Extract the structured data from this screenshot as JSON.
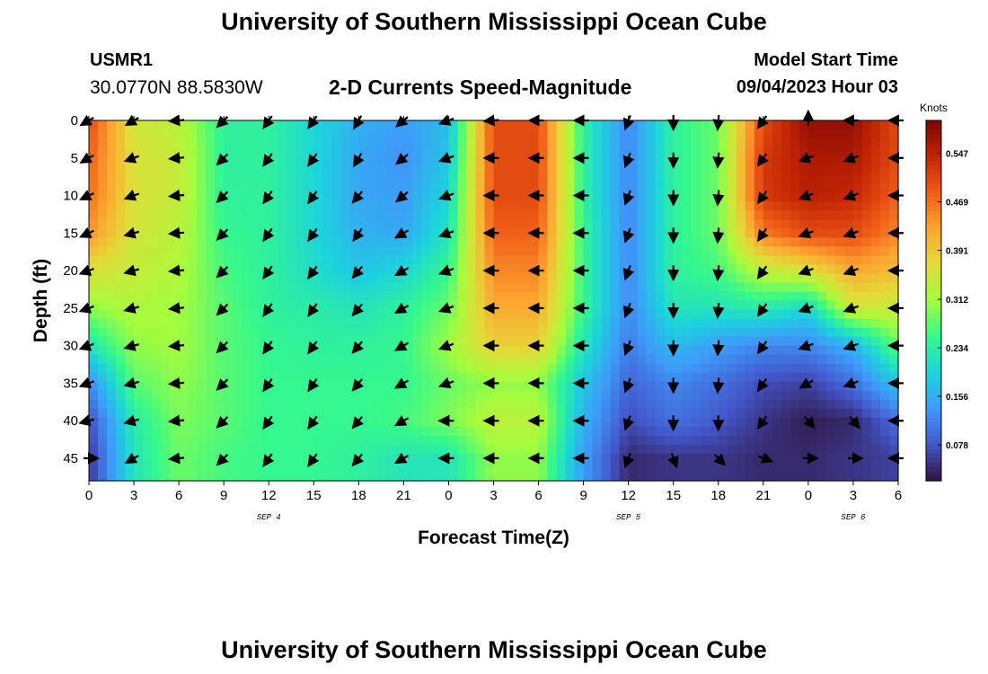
{
  "header": {
    "title": "University of Southern Mississippi Ocean Cube",
    "station": "USMR1",
    "coordinates": "30.0770N  88.5830W",
    "subtitle": "2-D Currents Speed-Magnitude",
    "model_start_label": "Model Start Time",
    "model_start_value": "09/04/2023 Hour 03"
  },
  "footer": {
    "title": "University of Southern Mississippi Ocean Cube"
  },
  "chart_data": {
    "type": "heatmap",
    "xlabel": "Forecast Time(Z)",
    "ylabel": "Depth (ft)",
    "xlim": [
      0,
      54
    ],
    "ylim": [
      48,
      0
    ],
    "x_ticks": [
      0,
      3,
      6,
      9,
      12,
      15,
      18,
      21,
      24,
      27,
      30,
      33,
      36,
      39,
      42,
      45,
      48,
      51,
      54
    ],
    "x_tick_labels": [
      "0",
      "3",
      "6",
      "9",
      "12",
      "15",
      "18",
      "21",
      "0",
      "3",
      "6",
      "9",
      "12",
      "15",
      "18",
      "21",
      "0",
      "3",
      "6"
    ],
    "y_ticks": [
      0,
      5,
      10,
      15,
      20,
      25,
      30,
      35,
      40,
      45
    ],
    "y_tick_labels": [
      "0",
      "5",
      "10",
      "15",
      "20",
      "25",
      "30",
      "35",
      "40",
      "45"
    ],
    "date_labels": [
      {
        "x": 12,
        "text": "SEP 4"
      },
      {
        "x": 36,
        "text": "SEP 5"
      },
      {
        "x": 51,
        "text": "SEP 6"
      }
    ],
    "colorbar": {
      "label": "Knots",
      "ticks": [
        0.078,
        0.156,
        0.234,
        0.312,
        0.391,
        0.469,
        0.547
      ],
      "tick_labels": [
        "0.078",
        "0.156",
        "0.234",
        "0.312",
        "0.391",
        "0.469",
        "0.547"
      ],
      "range": [
        0.02,
        0.6
      ],
      "colormap": "turbo"
    },
    "speed_knots": {
      "x": [
        0,
        3,
        6,
        9,
        12,
        15,
        18,
        21,
        24,
        27,
        30,
        33,
        36,
        39,
        42,
        45,
        48,
        51,
        54
      ],
      "depth": [
        0,
        5,
        10,
        15,
        20,
        25,
        30,
        35,
        40,
        45
      ],
      "values": [
        [
          0.5,
          0.35,
          0.33,
          0.24,
          0.24,
          0.2,
          0.16,
          0.14,
          0.17,
          0.5,
          0.5,
          0.24,
          0.12,
          0.24,
          0.28,
          0.5,
          0.58,
          0.58,
          0.5
        ],
        [
          0.48,
          0.36,
          0.34,
          0.24,
          0.24,
          0.2,
          0.15,
          0.13,
          0.18,
          0.5,
          0.5,
          0.24,
          0.12,
          0.24,
          0.28,
          0.52,
          0.56,
          0.56,
          0.5
        ],
        [
          0.47,
          0.36,
          0.34,
          0.24,
          0.24,
          0.2,
          0.15,
          0.14,
          0.2,
          0.5,
          0.5,
          0.24,
          0.12,
          0.24,
          0.28,
          0.52,
          0.55,
          0.54,
          0.48
        ],
        [
          0.44,
          0.35,
          0.33,
          0.25,
          0.24,
          0.2,
          0.16,
          0.15,
          0.22,
          0.48,
          0.48,
          0.25,
          0.12,
          0.24,
          0.28,
          0.46,
          0.5,
          0.5,
          0.45
        ],
        [
          0.36,
          0.34,
          0.32,
          0.26,
          0.24,
          0.21,
          0.18,
          0.2,
          0.25,
          0.45,
          0.45,
          0.25,
          0.12,
          0.24,
          0.26,
          0.33,
          0.36,
          0.42,
          0.4
        ],
        [
          0.3,
          0.32,
          0.31,
          0.27,
          0.24,
          0.23,
          0.22,
          0.24,
          0.28,
          0.42,
          0.42,
          0.25,
          0.12,
          0.22,
          0.22,
          0.23,
          0.2,
          0.35,
          0.34
        ],
        [
          0.22,
          0.3,
          0.31,
          0.27,
          0.25,
          0.24,
          0.24,
          0.25,
          0.31,
          0.38,
          0.38,
          0.22,
          0.11,
          0.17,
          0.14,
          0.12,
          0.12,
          0.16,
          0.28
        ],
        [
          0.12,
          0.27,
          0.3,
          0.27,
          0.25,
          0.25,
          0.25,
          0.25,
          0.28,
          0.3,
          0.3,
          0.18,
          0.09,
          0.12,
          0.1,
          0.07,
          0.06,
          0.1,
          0.18
        ],
        [
          0.07,
          0.23,
          0.29,
          0.27,
          0.25,
          0.25,
          0.25,
          0.26,
          0.29,
          0.33,
          0.33,
          0.16,
          0.07,
          0.1,
          0.08,
          0.05,
          0.03,
          0.04,
          0.1
        ],
        [
          0.05,
          0.22,
          0.28,
          0.26,
          0.25,
          0.25,
          0.24,
          0.22,
          0.22,
          0.3,
          0.3,
          0.14,
          0.04,
          0.05,
          0.05,
          0.04,
          0.04,
          0.05,
          0.06
        ]
      ]
    },
    "vector_direction_deg": {
      "note": "direction toward which current flows, degrees clockwise from north",
      "x": [
        0,
        3,
        6,
        9,
        12,
        15,
        18,
        21,
        24,
        27,
        30,
        33,
        36,
        39,
        42,
        45,
        48,
        51,
        54
      ],
      "depth": [
        0,
        5,
        10,
        15,
        20,
        25,
        30,
        35,
        40,
        45
      ],
      "values": [
        [
          240,
          240,
          265,
          225,
          215,
          215,
          210,
          230,
          250,
          265,
          270,
          270,
          200,
          180,
          185,
          215,
          0,
          270,
          270
        ],
        [
          240,
          250,
          265,
          225,
          215,
          215,
          210,
          230,
          250,
          270,
          270,
          270,
          200,
          180,
          185,
          215,
          250,
          250,
          270
        ],
        [
          245,
          250,
          265,
          225,
          215,
          215,
          220,
          230,
          250,
          270,
          270,
          270,
          200,
          180,
          185,
          215,
          250,
          250,
          270
        ],
        [
          245,
          255,
          265,
          225,
          215,
          215,
          215,
          240,
          250,
          270,
          270,
          270,
          200,
          180,
          185,
          215,
          250,
          250,
          270
        ],
        [
          250,
          255,
          265,
          225,
          215,
          215,
          220,
          240,
          250,
          270,
          270,
          270,
          200,
          180,
          185,
          215,
          250,
          250,
          270
        ],
        [
          250,
          255,
          265,
          225,
          215,
          215,
          220,
          240,
          250,
          270,
          270,
          270,
          200,
          180,
          185,
          215,
          250,
          250,
          270
        ],
        [
          250,
          255,
          265,
          225,
          215,
          215,
          220,
          240,
          250,
          270,
          270,
          270,
          200,
          180,
          185,
          215,
          250,
          250,
          270
        ],
        [
          250,
          255,
          265,
          225,
          215,
          215,
          220,
          240,
          250,
          270,
          270,
          270,
          200,
          180,
          185,
          215,
          240,
          250,
          270
        ],
        [
          255,
          255,
          265,
          225,
          215,
          215,
          220,
          240,
          270,
          270,
          270,
          270,
          200,
          180,
          180,
          215,
          140,
          140,
          270
        ],
        [
          90,
          240,
          265,
          225,
          215,
          215,
          220,
          240,
          270,
          270,
          270,
          270,
          200,
          160,
          135,
          110,
          90,
          90,
          270
        ]
      ]
    }
  }
}
